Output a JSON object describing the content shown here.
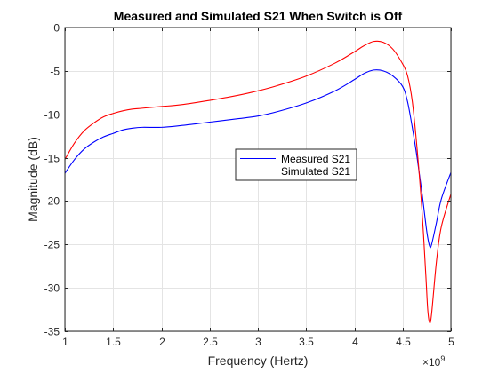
{
  "chart_data": {
    "type": "line",
    "title": "Measured and Simulated S21 When Switch is Off",
    "xlabel": "Frequency (Hertz)",
    "ylabel": "Magnitude (dB)",
    "xlim": [
      1,
      5
    ],
    "ylim": [
      -35,
      0
    ],
    "x_exponent_label": "×10",
    "x_exponent_power": "9",
    "xticks": [
      1,
      1.5,
      2,
      2.5,
      3,
      3.5,
      4,
      4.5,
      5
    ],
    "xtick_labels": [
      "1",
      "1.5",
      "2",
      "2.5",
      "3",
      "3.5",
      "4",
      "4.5",
      "5"
    ],
    "yticks": [
      0,
      -5,
      -10,
      -15,
      -20,
      -25,
      -30,
      -35
    ],
    "ytick_labels": [
      "0",
      "-5",
      "-10",
      "-15",
      "-20",
      "-25",
      "-30",
      "-35"
    ],
    "grid": true,
    "legend_position": "center-right",
    "series": [
      {
        "name": "Measured S21",
        "color": "#0000ff",
        "x": [
          1.0,
          1.1,
          1.2,
          1.3,
          1.4,
          1.5,
          1.6,
          1.7,
          1.8,
          2.0,
          2.2,
          2.5,
          2.8,
          3.0,
          3.2,
          3.5,
          3.8,
          4.0,
          4.1,
          4.2,
          4.3,
          4.4,
          4.5,
          4.55,
          4.6,
          4.65,
          4.7,
          4.75,
          4.78,
          4.8,
          4.85,
          4.9,
          5.0
        ],
        "y": [
          -16.8,
          -15.2,
          -14.0,
          -13.2,
          -12.6,
          -12.2,
          -11.8,
          -11.6,
          -11.5,
          -11.5,
          -11.3,
          -10.9,
          -10.5,
          -10.2,
          -9.7,
          -8.7,
          -7.3,
          -6.0,
          -5.3,
          -4.9,
          -5.0,
          -5.6,
          -6.8,
          -8.5,
          -11.5,
          -15.0,
          -19.0,
          -23.5,
          -25.2,
          -25.0,
          -22.5,
          -19.8,
          -16.7
        ]
      },
      {
        "name": "Simulated S21",
        "color": "#ff0000",
        "x": [
          1.0,
          1.1,
          1.2,
          1.3,
          1.4,
          1.5,
          1.6,
          1.7,
          1.8,
          2.0,
          2.2,
          2.5,
          2.8,
          3.0,
          3.2,
          3.5,
          3.8,
          4.0,
          4.1,
          4.2,
          4.3,
          4.4,
          4.5,
          4.55,
          4.6,
          4.65,
          4.7,
          4.74,
          4.76,
          4.78,
          4.8,
          4.85,
          4.9,
          5.0
        ],
        "y": [
          -15.2,
          -13.3,
          -11.9,
          -11.0,
          -10.3,
          -9.9,
          -9.6,
          -9.4,
          -9.3,
          -9.1,
          -8.9,
          -8.4,
          -7.8,
          -7.3,
          -6.7,
          -5.6,
          -4.1,
          -2.8,
          -2.1,
          -1.6,
          -1.7,
          -2.5,
          -4.2,
          -5.5,
          -8.5,
          -14.0,
          -21.0,
          -28.5,
          -32.5,
          -34.0,
          -33.0,
          -27.0,
          -23.0,
          -19.2
        ]
      }
    ]
  }
}
